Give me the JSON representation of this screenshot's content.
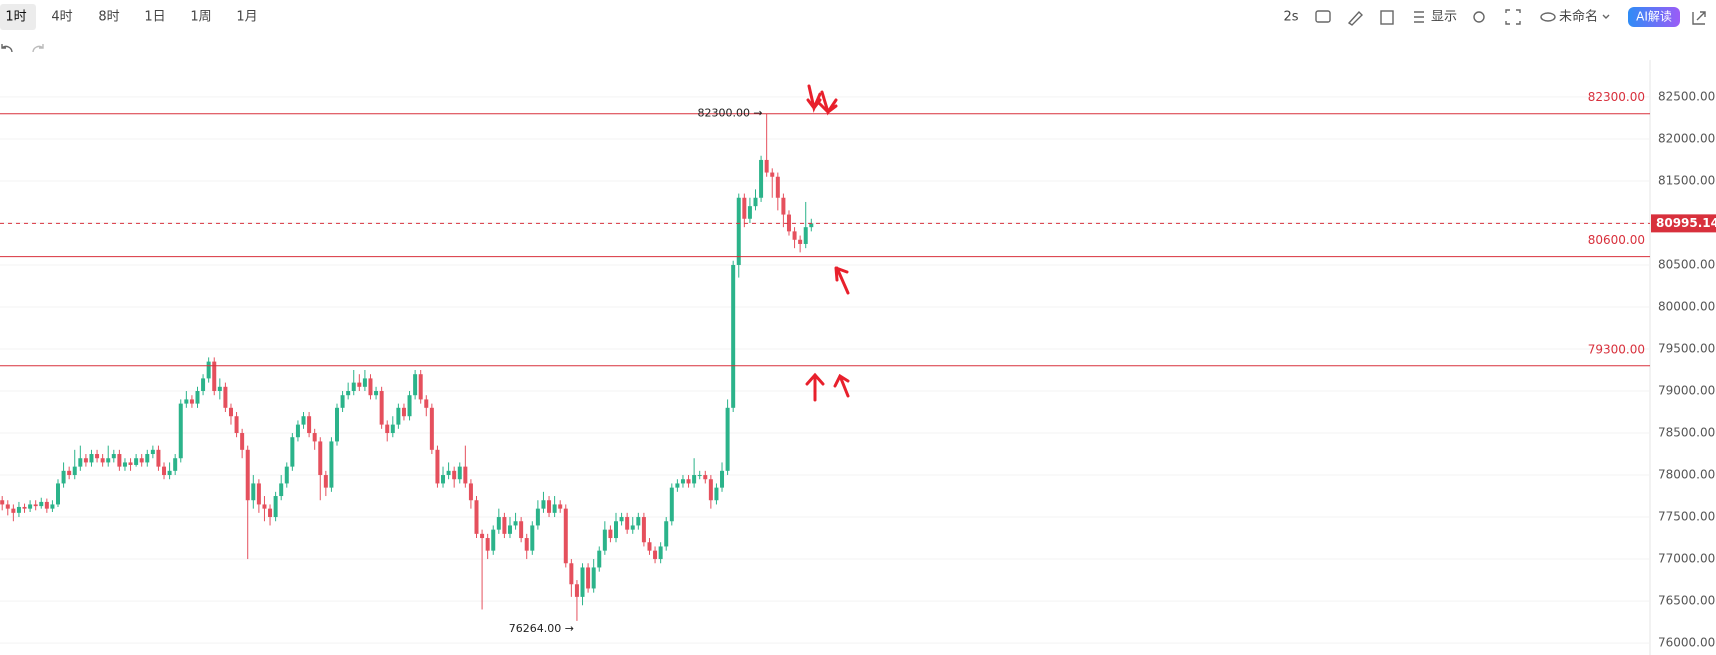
{
  "toolbar": {
    "intervals": [
      "1时",
      "4时",
      "8时",
      "1日",
      "1周",
      "1月"
    ],
    "selected": 0,
    "refresh": "2s",
    "display": "显示",
    "layout_name": "未命名",
    "ai_button": "AI解读"
  },
  "chart_data": {
    "type": "candlestick",
    "open": [
      77700,
      77650,
      77600,
      77550,
      77620,
      77600,
      77650,
      77630,
      77680,
      77600,
      77650,
      77900,
      78050,
      78000,
      78100,
      78200,
      78150,
      78250,
      78200,
      78150,
      78200,
      78250,
      78100,
      78150,
      78120,
      78200,
      78150,
      78250,
      78300,
      78100,
      78000,
      78050,
      78200,
      78850,
      78900,
      78850,
      79000,
      79150,
      79350,
      79000,
      79050,
      78800,
      78700,
      78500,
      78300,
      77700,
      77900,
      77650,
      77600,
      77500,
      77750,
      77900,
      78100,
      78450,
      78600,
      78700,
      78500,
      78400,
      78000,
      77850,
      78400,
      78800,
      78950,
      79000,
      79100,
      79050,
      79150,
      78950,
      79000,
      78600,
      78500,
      78600,
      78800,
      78700,
      78950,
      79200,
      78900,
      78800,
      78300,
      77900,
      78000,
      78050,
      77950,
      78100,
      77900,
      77700,
      77300,
      77250,
      77100,
      77350,
      77500,
      77300,
      77400,
      77450,
      77250,
      77100,
      77400,
      77600,
      77700,
      77550,
      77650,
      77600,
      76950,
      76700,
      76550,
      76900,
      76650,
      76900,
      77100,
      77350,
      77250,
      77450,
      77500,
      77350,
      77400,
      77500,
      77200,
      77100,
      77000,
      77150,
      77450,
      77850,
      77900,
      77950,
      77900,
      78000,
      78000,
      77950,
      77700,
      77850,
      78050,
      78800,
      80500,
      81300,
      81050,
      81200,
      81300,
      81750,
      81600,
      81550,
      81300,
      81100,
      80900,
      80800,
      80750,
      80950
    ],
    "high": [
      77750,
      77700,
      77650,
      77680,
      77660,
      77700,
      77700,
      77730,
      77720,
      77700,
      77950,
      78150,
      78100,
      78300,
      78350,
      78250,
      78300,
      78300,
      78250,
      78350,
      78300,
      78300,
      78200,
      78200,
      78250,
      78250,
      78300,
      78350,
      78350,
      78150,
      78150,
      78250,
      78900,
      79000,
      78950,
      79050,
      79200,
      79400,
      79400,
      79150,
      79100,
      78850,
      78750,
      78550,
      78350,
      78000,
      77950,
      77750,
      77650,
      77800,
      78000,
      78150,
      78500,
      78650,
      78750,
      78750,
      78550,
      78450,
      78050,
      78450,
      78850,
      79000,
      79100,
      79250,
      79200,
      79250,
      79200,
      79050,
      79050,
      78650,
      78700,
      78850,
      78850,
      79000,
      79250,
      79250,
      78950,
      78850,
      78350,
      78100,
      78150,
      78100,
      78150,
      78350,
      77950,
      77750,
      77350,
      77300,
      77400,
      77600,
      77550,
      77500,
      77550,
      77500,
      77300,
      77450,
      77700,
      77800,
      77750,
      77750,
      77700,
      77650,
      77000,
      76750,
      76950,
      76950,
      77000,
      77150,
      77450,
      77400,
      77550,
      77550,
      77550,
      77500,
      77550,
      77550,
      77250,
      77150,
      77200,
      77500,
      77900,
      77950,
      78000,
      78000,
      78200,
      78050,
      78050,
      78000,
      77900,
      78150,
      78900,
      80550,
      81350,
      81350,
      81300,
      81400,
      81800,
      82300,
      81650,
      81600,
      81350,
      81150,
      80950,
      80850,
      81250,
      81050
    ],
    "low": [
      77580,
      77520,
      77450,
      77500,
      77550,
      77560,
      77580,
      77600,
      77550,
      77560,
      77620,
      77850,
      77950,
      77950,
      78050,
      78100,
      78100,
      78150,
      78100,
      78100,
      78150,
      78050,
      78050,
      78050,
      78100,
      78100,
      78100,
      78200,
      78050,
      77950,
      77950,
      78000,
      78150,
      78800,
      78800,
      78800,
      78950,
      79100,
      78950,
      78900,
      78750,
      78600,
      78450,
      78200,
      77000,
      77600,
      77550,
      77450,
      77400,
      77450,
      77700,
      77850,
      78050,
      78400,
      78550,
      78450,
      78300,
      77700,
      77750,
      77800,
      78350,
      78750,
      78900,
      78950,
      79000,
      79000,
      78900,
      78900,
      78550,
      78400,
      78450,
      78550,
      78650,
      78650,
      78900,
      78850,
      78700,
      78250,
      77850,
      77850,
      77950,
      77850,
      77900,
      77850,
      77600,
      77250,
      76400,
      77000,
      77050,
      77300,
      77250,
      77250,
      77350,
      77200,
      77000,
      77050,
      77350,
      77550,
      77500,
      77500,
      77550,
      76900,
      76550,
      76264,
      76450,
      76600,
      76600,
      76850,
      77050,
      77200,
      77200,
      77400,
      77300,
      77300,
      77350,
      77150,
      77050,
      76950,
      76950,
      77100,
      77400,
      77800,
      77850,
      77850,
      77850,
      77950,
      77900,
      77600,
      77650,
      77800,
      78000,
      78750,
      80350,
      80950,
      81000,
      81150,
      81250,
      81550,
      81300,
      81150,
      80950,
      80850,
      80700,
      80650,
      80700,
      80900
    ],
    "close": [
      77650,
      77600,
      77550,
      77620,
      77600,
      77650,
      77630,
      77680,
      77600,
      77650,
      77900,
      78050,
      78000,
      78100,
      78200,
      78150,
      78250,
      78200,
      78150,
      78200,
      78250,
      78100,
      78150,
      78120,
      78200,
      78150,
      78250,
      78300,
      78100,
      78000,
      78050,
      78200,
      78850,
      78900,
      78850,
      79000,
      79150,
      79350,
      79000,
      79050,
      78800,
      78700,
      78500,
      78300,
      77700,
      77900,
      77650,
      77600,
      77500,
      77750,
      77900,
      78100,
      78450,
      78600,
      78700,
      78500,
      78400,
      78000,
      77850,
      78400,
      78800,
      78950,
      79000,
      79100,
      79050,
      79150,
      78950,
      79000,
      78600,
      78500,
      78600,
      78800,
      78700,
      78950,
      79200,
      78900,
      78800,
      78300,
      77900,
      78000,
      78050,
      77950,
      78100,
      77900,
      77700,
      77300,
      77250,
      77100,
      77350,
      77500,
      77300,
      77400,
      77450,
      77250,
      77100,
      77400,
      77600,
      77700,
      77550,
      77650,
      77600,
      76950,
      76700,
      76550,
      76900,
      76650,
      76900,
      77100,
      77350,
      77250,
      77450,
      77500,
      77350,
      77400,
      77500,
      77200,
      77100,
      77000,
      77150,
      77450,
      77850,
      77900,
      77950,
      77900,
      78000,
      78000,
      77950,
      77700,
      77850,
      78050,
      78800,
      80500,
      81300,
      81050,
      81200,
      81300,
      81750,
      81600,
      81550,
      81300,
      81100,
      80900,
      80800,
      80750,
      80950,
      80995
    ],
    "up_color": "#2bb38a",
    "down_color": "#e5505d",
    "ylim": [
      75870,
      82880
    ],
    "yticks": [
      {
        "value": 76000,
        "label": "76000.00"
      },
      {
        "value": 76500,
        "label": "76500.00"
      },
      {
        "value": 77000,
        "label": "77000.00"
      },
      {
        "value": 77500,
        "label": "77500.00"
      },
      {
        "value": 78000,
        "label": "78000.00"
      },
      {
        "value": 78500,
        "label": "78500.00"
      },
      {
        "value": 79000,
        "label": "79000.00"
      },
      {
        "value": 79500,
        "label": "79500.00"
      },
      {
        "value": 80000,
        "label": "80000.00"
      },
      {
        "value": 80500,
        "label": "80500.00"
      },
      {
        "value": 81000,
        "label": "81000.00"
      },
      {
        "value": 81500,
        "label": "81500.00"
      },
      {
        "value": 82000,
        "label": "82000.00"
      },
      {
        "value": 82500,
        "label": "82500.00"
      }
    ],
    "levels": [
      {
        "value": 82300,
        "label": "82300.00"
      },
      {
        "value": 80600,
        "label": "80600.00"
      },
      {
        "value": 79300,
        "label": "79300.00"
      }
    ],
    "level_color": "#d8303c",
    "current_price": 80995.14,
    "max_label": {
      "value": 82300,
      "label": "82300.00 →"
    },
    "min_label": {
      "value": 76264,
      "label": "76264.00 →"
    },
    "grid": true
  }
}
